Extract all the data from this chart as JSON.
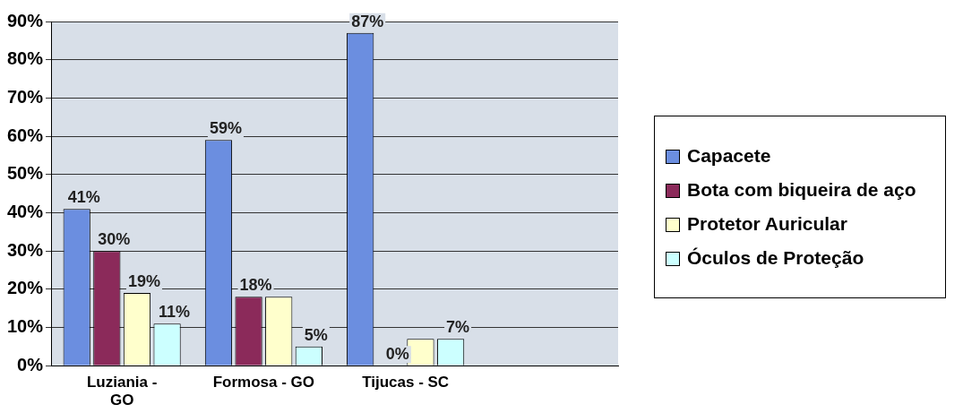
{
  "chart_data": {
    "type": "bar",
    "categories": [
      "Luziania - GO",
      "Formosa - GO",
      "Tijucas - SC",
      null
    ],
    "series": [
      {
        "name": "Capacete",
        "color": "#6b8ee0",
        "values": [
          41,
          59,
          87,
          null
        ],
        "value_labels": [
          "41%",
          "59%",
          "87%",
          null
        ]
      },
      {
        "name": "Bota com biqueira de aço",
        "color": "#8b2a5a",
        "values": [
          30,
          18,
          0,
          null
        ],
        "value_labels": [
          "30%",
          "18%",
          "0%",
          null
        ]
      },
      {
        "name": "Protetor Auricular",
        "color": "#ffffcc",
        "values": [
          19,
          18,
          7,
          null
        ],
        "value_labels": [
          "19%",
          null,
          null,
          null
        ]
      },
      {
        "name": "Óculos de Proteção",
        "color": "#ccffff",
        "values": [
          11,
          5,
          7,
          null
        ],
        "value_labels": [
          "11%",
          "5%",
          "7%",
          null
        ]
      }
    ],
    "ylim": [
      0,
      90
    ],
    "yticks": [
      {
        "value": 0,
        "label": "0%"
      },
      {
        "value": 10,
        "label": "10%"
      },
      {
        "value": 20,
        "label": "20%"
      },
      {
        "value": 30,
        "label": "30%"
      },
      {
        "value": 40,
        "label": "40%"
      },
      {
        "value": 50,
        "label": "50%"
      },
      {
        "value": 60,
        "label": "60%"
      },
      {
        "value": 70,
        "label": "70%"
      },
      {
        "value": 80,
        "label": "80%"
      },
      {
        "value": 90,
        "label": "90%"
      }
    ],
    "grid": "y",
    "legend": "right"
  }
}
